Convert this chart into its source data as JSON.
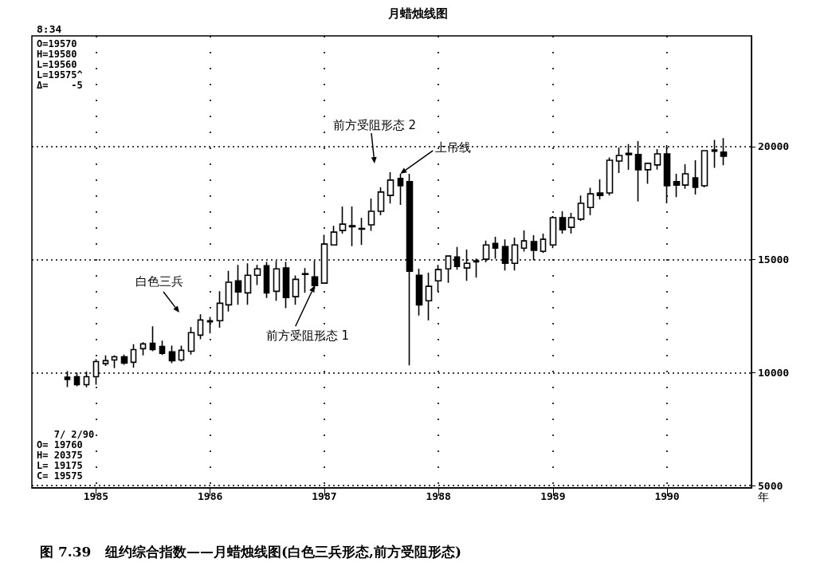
{
  "chart_data": {
    "type": "candlestick",
    "title": "月蜡烛线图",
    "xlabel": "年",
    "color": "#000000",
    "x": [
      "1984-10",
      "1984-11",
      "1984-12",
      "1985-01",
      "1985-02",
      "1985-03",
      "1985-04",
      "1985-05",
      "1985-06",
      "1985-07",
      "1985-08",
      "1985-09",
      "1985-10",
      "1985-11",
      "1985-12",
      "1986-01",
      "1986-02",
      "1986-03",
      "1986-04",
      "1986-05",
      "1986-06",
      "1986-07",
      "1986-08",
      "1986-09",
      "1986-10",
      "1986-11",
      "1986-12",
      "1987-01",
      "1987-02",
      "1987-03",
      "1987-04",
      "1987-05",
      "1987-06",
      "1987-07",
      "1987-08",
      "1987-09",
      "1987-10",
      "1987-11",
      "1987-12",
      "1988-01",
      "1988-02",
      "1988-03",
      "1988-04",
      "1988-05",
      "1988-06",
      "1988-07",
      "1988-08",
      "1988-09",
      "1988-10",
      "1988-11",
      "1988-12",
      "1989-01",
      "1989-02",
      "1989-03",
      "1989-04",
      "1989-05",
      "1989-06",
      "1989-07",
      "1989-08",
      "1989-09",
      "1989-10",
      "1989-11",
      "1989-12",
      "1990-01",
      "1990-02",
      "1990-03",
      "1990-04",
      "1990-05",
      "1990-06",
      "1990-07"
    ],
    "ohlc": [
      [
        9800,
        10070,
        9360,
        9700
      ],
      [
        9820,
        10000,
        9400,
        9470
      ],
      [
        9470,
        10050,
        9350,
        9820
      ],
      [
        9820,
        10600,
        9470,
        10490
      ],
      [
        10400,
        10760,
        10300,
        10530
      ],
      [
        10560,
        10760,
        10200,
        10700
      ],
      [
        10700,
        10800,
        10350,
        10420
      ],
      [
        10460,
        11260,
        10220,
        11020
      ],
      [
        11060,
        11350,
        10760,
        11270
      ],
      [
        11300,
        12050,
        10950,
        11020
      ],
      [
        11160,
        11420,
        10780,
        10850
      ],
      [
        10920,
        11200,
        10420,
        10530
      ],
      [
        10560,
        11200,
        10490,
        10990
      ],
      [
        10950,
        12020,
        10800,
        11770
      ],
      [
        11660,
        12580,
        11480,
        12330
      ],
      [
        12250,
        12470,
        11730,
        12300
      ],
      [
        12300,
        13600,
        11990,
        13070
      ],
      [
        13000,
        14500,
        12700,
        14000
      ],
      [
        14060,
        14770,
        13000,
        13570
      ],
      [
        13530,
        14840,
        13000,
        14310
      ],
      [
        14310,
        14770,
        13880,
        14590
      ],
      [
        14730,
        14900,
        13300,
        13530
      ],
      [
        13600,
        14940,
        13180,
        14590
      ],
      [
        14630,
        14900,
        12850,
        13320
      ],
      [
        13360,
        14300,
        13000,
        14130
      ],
      [
        14350,
        14630,
        13530,
        14380
      ],
      [
        14240,
        14950,
        13700,
        13850
      ],
      [
        13960,
        16100,
        13960,
        15690
      ],
      [
        15650,
        16500,
        15650,
        16220
      ],
      [
        16290,
        17350,
        16150,
        16570
      ],
      [
        16450,
        17350,
        15600,
        16500
      ],
      [
        16350,
        16850,
        15650,
        16380
      ],
      [
        16540,
        17700,
        16280,
        17140
      ],
      [
        17140,
        18200,
        16960,
        17990
      ],
      [
        17840,
        18870,
        17480,
        18520
      ],
      [
        18590,
        18800,
        17420,
        18270
      ],
      [
        18450,
        18800,
        10320,
        14490
      ],
      [
        14310,
        14600,
        12530,
        13000
      ],
      [
        13180,
        14420,
        12320,
        13820
      ],
      [
        14060,
        14770,
        13570,
        14560
      ],
      [
        14590,
        15160,
        13970,
        15160
      ],
      [
        15120,
        15560,
        14560,
        14700
      ],
      [
        14630,
        15450,
        14060,
        14840
      ],
      [
        14900,
        15050,
        14200,
        14950
      ],
      [
        15020,
        15840,
        14880,
        15650
      ],
      [
        15720,
        16010,
        15040,
        15510
      ],
      [
        15580,
        15900,
        14520,
        14840
      ],
      [
        14840,
        15980,
        14520,
        15650
      ],
      [
        15510,
        16290,
        15360,
        15830
      ],
      [
        15800,
        16080,
        14970,
        15410
      ],
      [
        15370,
        16150,
        15300,
        15900
      ],
      [
        15650,
        16930,
        15510,
        16860
      ],
      [
        16860,
        17140,
        16150,
        16320
      ],
      [
        16430,
        17070,
        16150,
        16860
      ],
      [
        16790,
        17840,
        16720,
        17490
      ],
      [
        17310,
        18180,
        16960,
        17910
      ],
      [
        17950,
        18550,
        17660,
        17840
      ],
      [
        17950,
        19520,
        17840,
        19400
      ],
      [
        19360,
        19960,
        18830,
        19610
      ],
      [
        19650,
        20110,
        18970,
        19700
      ],
      [
        19650,
        20240,
        17570,
        18980
      ],
      [
        18980,
        19260,
        18360,
        19260
      ],
      [
        19190,
        19890,
        18980,
        19680
      ],
      [
        19680,
        20070,
        17490,
        18270
      ],
      [
        18450,
        18800,
        17770,
        18300
      ],
      [
        18300,
        19220,
        18140,
        18800
      ],
      [
        18620,
        19400,
        17880,
        18200
      ],
      [
        18270,
        19820,
        18200,
        19820
      ],
      [
        19800,
        20300,
        19060,
        19850
      ],
      [
        19760,
        20375,
        19175,
        19575
      ]
    ],
    "xlim": [
      "1984-06-10",
      "1990-09-28"
    ],
    "xticks": [
      {
        "value": "1985-01",
        "label": "1985"
      },
      {
        "value": "1986-01",
        "label": "1986"
      },
      {
        "value": "1987-01",
        "label": "1987"
      },
      {
        "value": "1988-01",
        "label": "1988"
      },
      {
        "value": "1989-01",
        "label": "1989"
      },
      {
        "value": "1990-01",
        "label": "1990"
      }
    ],
    "ylim": [
      4900,
      24900
    ],
    "yticks": [
      5000,
      10000,
      15000,
      20000
    ],
    "grid": true,
    "annotations": [
      "8:34",
      "O=19570\nH=19580\nL=19560\nL=19575^\nΔ=    -5",
      "   7/ 2/90\nO= 19760\nH= 20375\nL= 19175\nC= 19575",
      "图 7.39   纽约综合指数——月蜡烛线图(白色三兵形态,前方受阻形态)",
      "白色三兵",
      {
        "text": "前方受阻形态 1",
        "x": "1986-12",
        "y": 13850
      },
      "前方受阻形态 2",
      {
        "text": "上吊线",
        "x": "1987-09",
        "y": 18800
      }
    ]
  }
}
